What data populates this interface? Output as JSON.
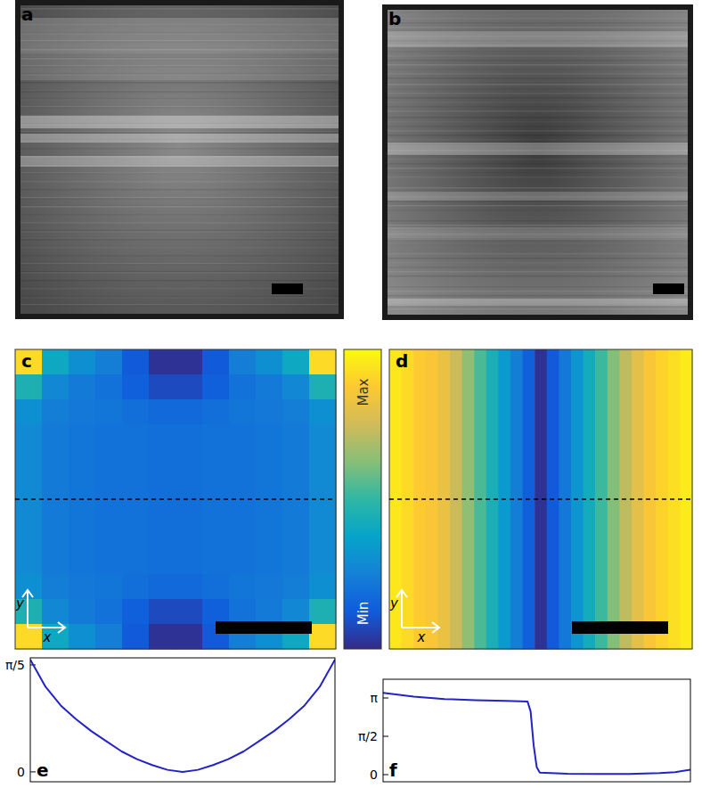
{
  "figure": {
    "images": [
      {
        "label": "a"
      },
      {
        "label": "b"
      }
    ],
    "heatmaps": [
      {
        "label": "c",
        "x_label": "x",
        "y_label": "y",
        "cells": [
          [
            0.92,
            0.4,
            0.3,
            0.24,
            0.12,
            0.02,
            0.02,
            0.12,
            0.24,
            0.3,
            0.4,
            0.92
          ],
          [
            0.45,
            0.27,
            0.23,
            0.2,
            0.14,
            0.08,
            0.08,
            0.14,
            0.2,
            0.23,
            0.27,
            0.45
          ],
          [
            0.3,
            0.24,
            0.22,
            0.21,
            0.19,
            0.17,
            0.17,
            0.19,
            0.21,
            0.22,
            0.24,
            0.3
          ],
          [
            0.28,
            0.23,
            0.21,
            0.2,
            0.2,
            0.19,
            0.19,
            0.2,
            0.2,
            0.21,
            0.23,
            0.28
          ],
          [
            0.28,
            0.23,
            0.21,
            0.2,
            0.2,
            0.19,
            0.19,
            0.2,
            0.2,
            0.21,
            0.23,
            0.28
          ],
          [
            0.28,
            0.23,
            0.21,
            0.2,
            0.2,
            0.19,
            0.19,
            0.2,
            0.2,
            0.21,
            0.23,
            0.28
          ],
          [
            0.28,
            0.23,
            0.21,
            0.2,
            0.2,
            0.19,
            0.19,
            0.2,
            0.2,
            0.21,
            0.23,
            0.28
          ],
          [
            0.28,
            0.23,
            0.21,
            0.2,
            0.2,
            0.19,
            0.19,
            0.2,
            0.2,
            0.21,
            0.23,
            0.28
          ],
          [
            0.28,
            0.23,
            0.21,
            0.2,
            0.2,
            0.19,
            0.19,
            0.2,
            0.2,
            0.21,
            0.23,
            0.28
          ],
          [
            0.3,
            0.24,
            0.22,
            0.21,
            0.19,
            0.17,
            0.17,
            0.19,
            0.21,
            0.22,
            0.24,
            0.3
          ],
          [
            0.45,
            0.27,
            0.23,
            0.2,
            0.14,
            0.08,
            0.08,
            0.14,
            0.2,
            0.23,
            0.27,
            0.45
          ],
          [
            0.92,
            0.4,
            0.3,
            0.24,
            0.12,
            0.02,
            0.02,
            0.12,
            0.24,
            0.3,
            0.4,
            0.92
          ]
        ]
      },
      {
        "label": "d",
        "x_label": "x",
        "y_label": "y",
        "cells": [
          [
            0.95,
            0.92,
            0.88,
            0.86,
            0.82,
            0.74,
            0.64,
            0.54,
            0.44,
            0.34,
            0.24,
            0.14,
            0.02,
            0.12,
            0.22,
            0.32,
            0.42,
            0.52,
            0.62,
            0.72,
            0.8,
            0.86,
            0.9,
            0.93,
            0.96
          ]
        ]
      }
    ],
    "colorbar": {
      "range": [
        0,
        1
      ],
      "max_label": "Max",
      "min_label": "Min"
    }
  },
  "chart_data": [
    {
      "type": "line",
      "title": "e",
      "color": "#2323c8",
      "tick_labels": "y",
      "x": [
        0,
        0.05,
        0.1,
        0.15,
        0.2,
        0.25,
        0.3,
        0.35,
        0.4,
        0.45,
        0.5,
        0.55,
        0.6,
        0.65,
        0.7,
        0.75,
        0.8,
        0.85,
        0.9,
        0.95,
        1
      ],
      "values": [
        0.66,
        0.5,
        0.39,
        0.31,
        0.24,
        0.18,
        0.12,
        0.075,
        0.04,
        0.012,
        0,
        0.012,
        0.04,
        0.075,
        0.12,
        0.18,
        0.24,
        0.31,
        0.39,
        0.5,
        0.66
      ],
      "xlim": [
        0,
        1
      ],
      "ylim": [
        -0.058,
        0.67
      ],
      "yticks": [
        0,
        {
          "value": 0.6283,
          "label": "π/5"
        }
      ]
    },
    {
      "type": "line",
      "title": "f",
      "color": "#2323c8",
      "tick_labels": "y",
      "x": [
        0,
        0.1,
        0.2,
        0.3,
        0.4,
        0.47,
        0.48,
        0.49,
        0.5,
        0.51,
        0.6,
        0.7,
        0.8,
        0.9,
        0.95,
        1
      ],
      "values": [
        3.35,
        3.2,
        3.1,
        3.05,
        3.02,
        3.0,
        2.6,
        1.2,
        0.3,
        0.08,
        0.04,
        0.03,
        0.03,
        0.06,
        0.1,
        0.2
      ],
      "xlim": [
        0,
        1
      ],
      "ylim": [
        -0.292,
        3.909
      ],
      "yticks": [
        0,
        {
          "value": 1.5708,
          "label": "π/2"
        },
        {
          "value": 3.1416,
          "label": "π"
        }
      ]
    }
  ]
}
